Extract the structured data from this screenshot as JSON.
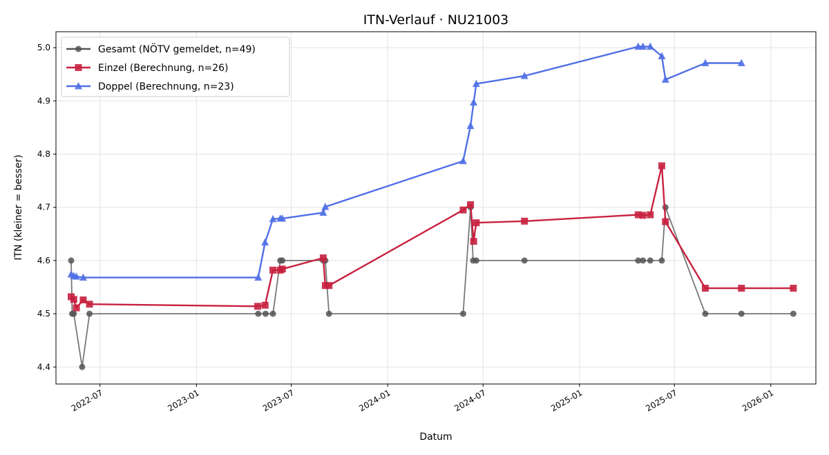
{
  "chart_data": {
    "type": "line",
    "title": "ITN-Verlauf · NU21003",
    "xlabel": "Datum",
    "ylabel": "ITN  (kleiner = besser)",
    "x_axis_type": "date",
    "xlim": [
      "2022-04-08",
      "2026-03-28"
    ],
    "ylim": [
      4.368,
      5.03
    ],
    "yticks": [
      4.4,
      4.5,
      4.6,
      4.7,
      4.8,
      4.9,
      5.0
    ],
    "ytick_labels": [
      "4.4",
      "4.5",
      "4.6",
      "4.7",
      "4.8",
      "4.9",
      "5.0"
    ],
    "xticks": [
      "2022-07-01",
      "2023-01-01",
      "2023-07-01",
      "2024-01-01",
      "2024-07-01",
      "2025-01-01",
      "2025-07-01",
      "2026-01-01"
    ],
    "xtick_labels": [
      "2022-07",
      "2023-01",
      "2023-07",
      "2024-01",
      "2024-07",
      "2025-01",
      "2025-07",
      "2026-01"
    ],
    "grid": true,
    "legend_position": "top-left",
    "series": [
      {
        "name": "Gesamt (NÖTV gemeldet, n=49)",
        "color": "#555555",
        "marker": "circle",
        "points": [
          [
            "2022-05-07",
            4.6
          ],
          [
            "2022-05-09",
            4.5
          ],
          [
            "2022-05-12",
            4.5
          ],
          [
            "2022-05-28",
            4.4
          ],
          [
            "2022-06-11",
            4.5
          ],
          [
            "2023-04-29",
            4.5
          ],
          [
            "2023-05-13",
            4.5
          ],
          [
            "2023-05-27",
            4.5
          ],
          [
            "2023-06-10",
            4.6
          ],
          [
            "2023-06-14",
            4.6
          ],
          [
            "2023-08-31",
            4.6
          ],
          [
            "2023-09-04",
            4.6
          ],
          [
            "2023-09-11",
            4.5
          ],
          [
            "2024-05-24",
            4.5
          ],
          [
            "2024-06-07",
            4.7
          ],
          [
            "2024-06-12",
            4.6
          ],
          [
            "2024-06-18",
            4.6
          ],
          [
            "2024-09-18",
            4.6
          ],
          [
            "2025-04-23",
            4.6
          ],
          [
            "2025-05-02",
            4.6
          ],
          [
            "2025-05-16",
            4.6
          ],
          [
            "2025-06-07",
            4.6
          ],
          [
            "2025-06-14",
            4.7
          ],
          [
            "2025-08-29",
            4.5
          ],
          [
            "2025-11-06",
            4.5
          ],
          [
            "2026-02-13",
            4.5
          ]
        ]
      },
      {
        "name": "Einzel (Berechnung, n=26)",
        "color": "#c8203f",
        "marker": "square",
        "points": [
          [
            "2022-05-07",
            4.532
          ],
          [
            "2022-05-12",
            4.527
          ],
          [
            "2022-05-17",
            4.511
          ],
          [
            "2022-05-30",
            4.526
          ],
          [
            "2022-06-11",
            4.518
          ],
          [
            "2023-04-28",
            4.514
          ],
          [
            "2023-05-12",
            4.516
          ],
          [
            "2023-05-27",
            4.582
          ],
          [
            "2023-06-10",
            4.582
          ],
          [
            "2023-06-14",
            4.584
          ],
          [
            "2023-08-31",
            4.605
          ],
          [
            "2023-09-04",
            4.553
          ],
          [
            "2023-09-11",
            4.553
          ],
          [
            "2024-05-24",
            4.695
          ],
          [
            "2024-06-07",
            4.705
          ],
          [
            "2024-06-13",
            4.636
          ],
          [
            "2024-06-18",
            4.671
          ],
          [
            "2024-09-18",
            4.674
          ],
          [
            "2025-04-23",
            4.686
          ],
          [
            "2025-05-02",
            4.685
          ],
          [
            "2025-05-16",
            4.686
          ],
          [
            "2025-06-07",
            4.778
          ],
          [
            "2025-06-14",
            4.673
          ],
          [
            "2025-08-29",
            4.548
          ],
          [
            "2025-11-06",
            4.548
          ],
          [
            "2026-02-13",
            4.548
          ]
        ]
      },
      {
        "name": "Doppel (Berechnung, n=23)",
        "color": "#4f6fe6",
        "marker": "triangle",
        "points": [
          [
            "2022-05-07",
            4.574
          ],
          [
            "2022-05-12",
            4.571
          ],
          [
            "2022-05-17",
            4.57
          ],
          [
            "2022-05-30",
            4.568
          ],
          [
            "2023-04-29",
            4.568
          ],
          [
            "2023-05-12",
            4.634
          ],
          [
            "2023-05-27",
            4.678
          ],
          [
            "2023-06-10",
            4.679
          ],
          [
            "2023-06-14",
            4.679
          ],
          [
            "2023-08-31",
            4.69
          ],
          [
            "2023-09-04",
            4.701
          ],
          [
            "2024-05-24",
            4.787
          ],
          [
            "2024-06-07",
            4.853
          ],
          [
            "2024-06-13",
            4.897
          ],
          [
            "2024-06-18",
            4.932
          ],
          [
            "2024-09-18",
            4.947
          ],
          [
            "2025-04-23",
            5.002
          ],
          [
            "2025-05-02",
            5.002
          ],
          [
            "2025-05-16",
            5.002
          ],
          [
            "2025-06-07",
            4.984
          ],
          [
            "2025-06-14",
            4.94
          ],
          [
            "2025-08-29",
            4.971
          ],
          [
            "2025-11-06",
            4.971
          ]
        ]
      }
    ]
  }
}
